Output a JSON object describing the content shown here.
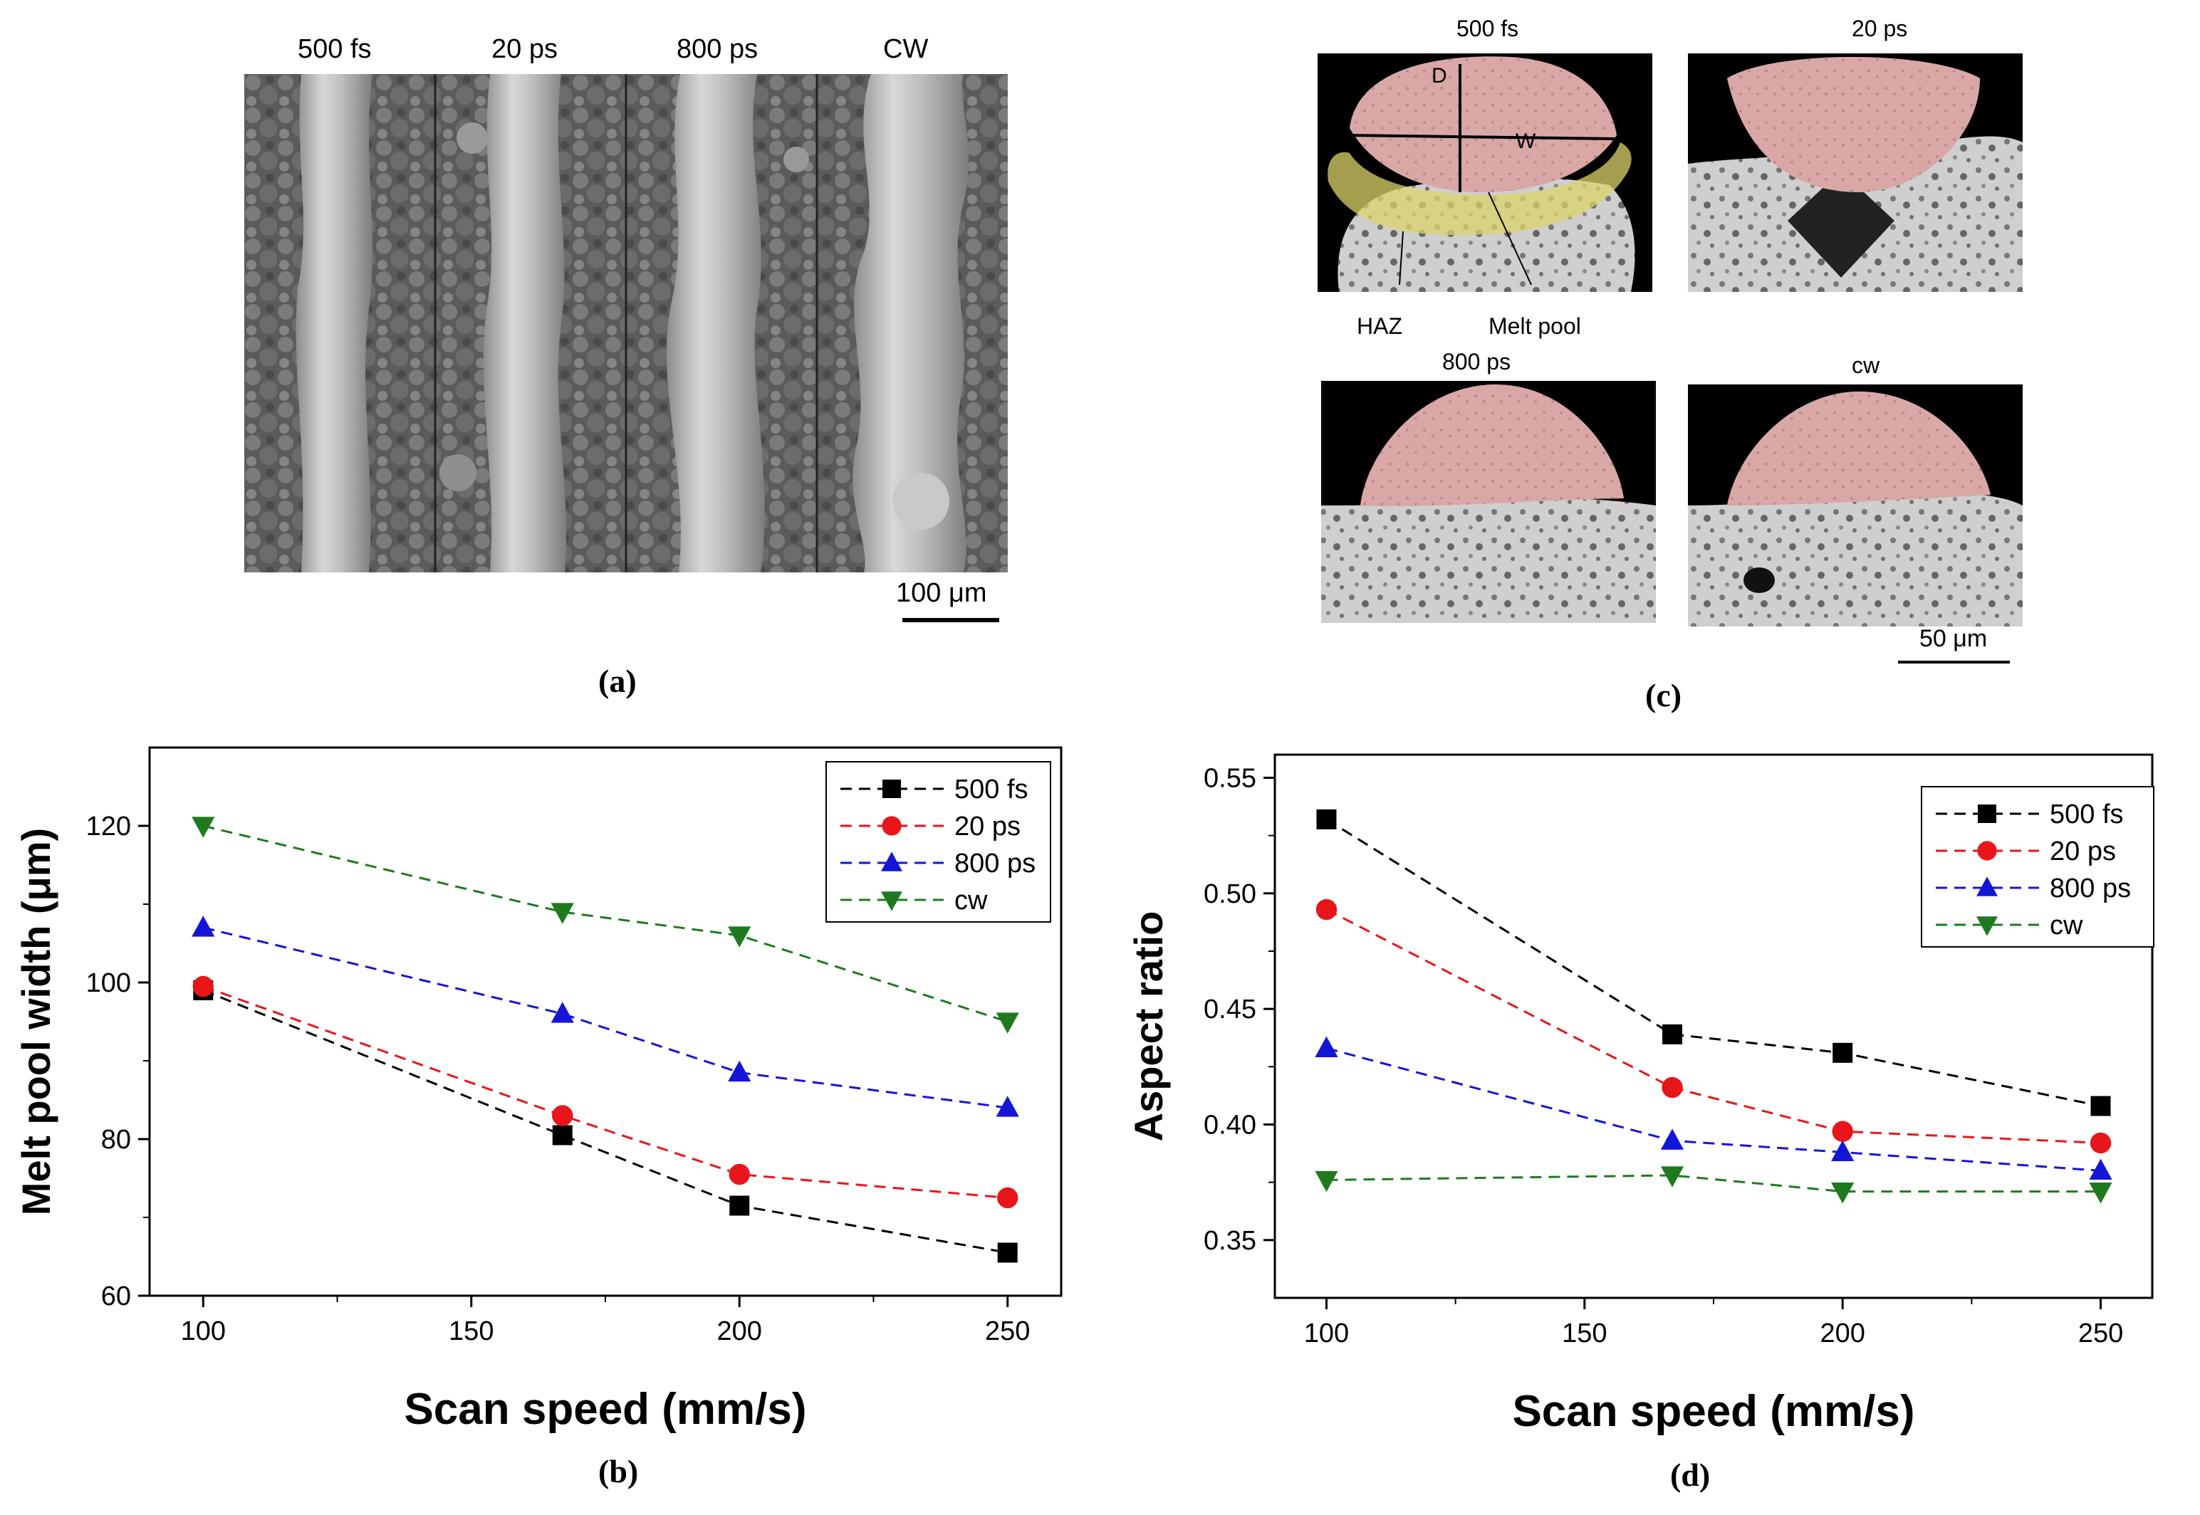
{
  "panel_a": {
    "caption": "(a)",
    "labels": [
      "500 fs",
      "20 ps",
      "800 ps",
      "CW"
    ],
    "scale_bar": "100 μm"
  },
  "panel_c": {
    "caption": "(c)",
    "labels": [
      "500 fs",
      "20 ps",
      "800 ps",
      "cw"
    ],
    "annotations": {
      "depth": "D",
      "width": "W",
      "haz": "HAZ",
      "melt_pool": "Melt pool"
    },
    "scale_bar": "50 μm",
    "colors": {
      "melt_pool": "#e08a8a",
      "haz": "#d9d46a"
    }
  },
  "chart_data": [
    {
      "panel": "(b)",
      "type": "line",
      "title": "",
      "xlabel": "Scan speed (mm/s)",
      "ylabel": "Melt pool width (μm)",
      "xlim": [
        90,
        260
      ],
      "ylim": [
        60,
        130
      ],
      "xticks": [
        100,
        150,
        200,
        250
      ],
      "yticks": [
        60,
        80,
        100,
        120
      ],
      "legend_position": "top-right",
      "series": [
        {
          "name": "500 fs",
          "marker": "square",
          "color": "#000000",
          "x": [
            100,
            167,
            200,
            250
          ],
          "values": [
            99,
            80.5,
            71.5,
            65.5
          ]
        },
        {
          "name": "20 ps",
          "marker": "circle",
          "color": "#e8161b",
          "x": [
            100,
            167,
            200,
            250
          ],
          "values": [
            99.5,
            83,
            75.5,
            72.5
          ]
        },
        {
          "name": "800 ps",
          "marker": "triangle-up",
          "color": "#1515d8",
          "x": [
            100,
            167,
            200,
            250
          ],
          "values": [
            107,
            96,
            88.5,
            84
          ]
        },
        {
          "name": "cw",
          "marker": "triangle-down",
          "color": "#1f7a1f",
          "x": [
            100,
            167,
            200,
            250
          ],
          "values": [
            120,
            109,
            106,
            95
          ]
        }
      ]
    },
    {
      "panel": "(d)",
      "type": "line",
      "title": "",
      "xlabel": "Scan speed (mm/s)",
      "ylabel": "Aspect ratio",
      "xlim": [
        90,
        260
      ],
      "ylim": [
        0.325,
        0.56
      ],
      "xticks": [
        100,
        150,
        200,
        250
      ],
      "yticks": [
        0.35,
        0.4,
        0.45,
        0.5,
        0.55
      ],
      "ytick_labels": [
        "0.35",
        "0.40",
        "0.45",
        "0.50",
        "0.55"
      ],
      "legend_position": "top-right",
      "series": [
        {
          "name": "500 fs",
          "marker": "square",
          "color": "#000000",
          "x": [
            100,
            167,
            200,
            250
          ],
          "values": [
            0.532,
            0.439,
            0.431,
            0.408
          ]
        },
        {
          "name": "20 ps",
          "marker": "circle",
          "color": "#e8161b",
          "x": [
            100,
            167,
            200,
            250
          ],
          "values": [
            0.493,
            0.416,
            0.397,
            0.392
          ]
        },
        {
          "name": "800 ps",
          "marker": "triangle-up",
          "color": "#1515d8",
          "x": [
            100,
            167,
            200,
            250
          ],
          "values": [
            0.433,
            0.393,
            0.388,
            0.38
          ]
        },
        {
          "name": "cw",
          "marker": "triangle-down",
          "color": "#1f7a1f",
          "x": [
            100,
            167,
            200,
            250
          ],
          "values": [
            0.376,
            0.378,
            0.371,
            0.371
          ]
        }
      ]
    }
  ]
}
